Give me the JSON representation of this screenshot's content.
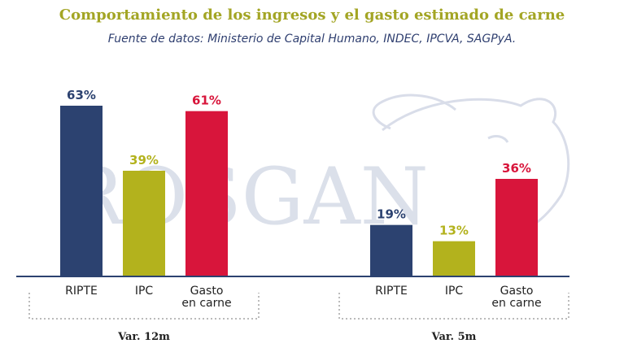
{
  "title": "Comportamiento de los ingresos y el gasto estimado de carne",
  "subtitle": "Fuente de datos: Ministerio de Capital Humano, INDEC, IPCVA, SAGPyA.",
  "watermark": "ROSGAN",
  "colors": {
    "ripte": "#2c4270",
    "ipc": "#b3b21d",
    "gasto": "#d8153b"
  },
  "chart_data": {
    "type": "bar",
    "title": "Comportamiento de los ingresos y el gasto estimado de carne",
    "ylim": [
      0,
      70
    ],
    "groups": [
      {
        "name": "Var. 12m",
        "categories": [
          "RIPTE",
          "IPC",
          "Gasto en carne"
        ],
        "values": [
          63,
          39,
          61
        ],
        "labels": [
          "63%",
          "39%",
          "61%"
        ]
      },
      {
        "name": "Var. 5m",
        "categories": [
          "RIPTE",
          "IPC",
          "Gasto en carne"
        ],
        "values": [
          19,
          13,
          36
        ],
        "labels": [
          "19%",
          "13%",
          "36%"
        ]
      }
    ]
  }
}
